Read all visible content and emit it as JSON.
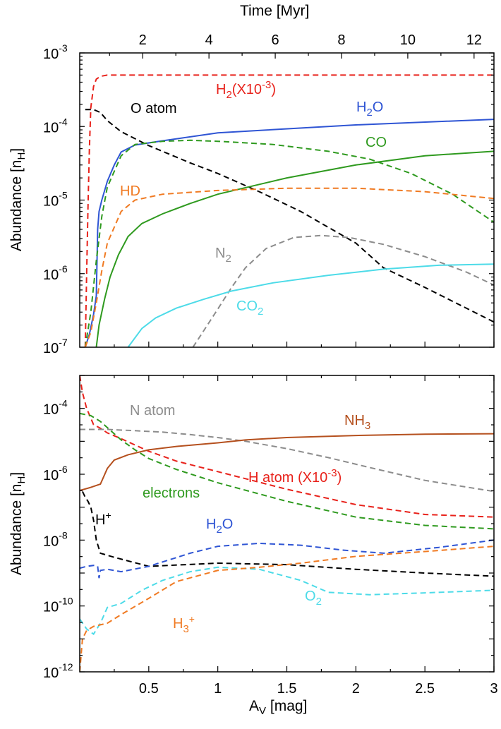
{
  "chart_data": [
    {
      "type": "line",
      "panel": "top",
      "title": "",
      "xlabel": "",
      "ylabel": "Abundance [nH]",
      "xlabel_top": "Time [Myr]",
      "xlim_top": [
        0.1,
        12.6
      ],
      "top_ticks": [
        "2",
        "4",
        "6",
        "8",
        "10",
        "12"
      ],
      "ylim": [
        1e-07,
        0.001
      ],
      "yscale": "log",
      "y_ticks": [
        {
          "base": "10",
          "exp": "-7"
        },
        {
          "base": "10",
          "exp": "-6"
        },
        {
          "base": "10",
          "exp": "-5"
        },
        {
          "base": "10",
          "exp": "-4"
        },
        {
          "base": "10",
          "exp": "-3"
        }
      ],
      "xlim": [
        0,
        3
      ],
      "series": [
        {
          "name": "H2(X10-3)",
          "style": "dashed",
          "color": "#e8221b",
          "x": [
            0.04,
            0.05,
            0.06,
            0.07,
            0.08,
            0.1,
            0.12,
            0.15,
            0.2,
            0.3,
            0.5,
            1,
            2,
            3
          ],
          "y": [
            1e-07,
            1e-06,
            8e-06,
            5e-05,
            0.00018,
            0.00035,
            0.00044,
            0.00048,
            0.0005,
            0.0005,
            0.0005,
            0.0005,
            0.0005,
            0.0005
          ]
        },
        {
          "name": "O atom",
          "style": "dashed",
          "color": "#000000",
          "x": [
            0.04,
            0.1,
            0.15,
            0.2,
            0.3,
            0.5,
            0.8,
            1.0,
            1.3,
            1.6,
            2.0,
            2.2,
            2.5,
            3.0
          ],
          "y": [
            0.00017,
            0.00017,
            0.000155,
            0.00012,
            8.5e-05,
            5.5e-05,
            3.2e-05,
            2.3e-05,
            1.3e-05,
            7e-06,
            2.6e-06,
            1.2e-06,
            6.5e-07,
            2.2e-07
          ]
        },
        {
          "name": "H2O",
          "style": "solid",
          "color": "#2f55d4",
          "x": [
            0.04,
            0.07,
            0.1,
            0.12,
            0.13,
            0.14,
            0.16,
            0.2,
            0.25,
            0.3,
            0.4,
            0.6,
            1,
            2,
            3
          ],
          "y": [
            1e-07,
            1.5e-07,
            2.8e-07,
            5e-07,
            4e-06,
            7e-06,
            1e-05,
            1.8e-05,
            3e-05,
            4.5e-05,
            5.6e-05,
            6.4e-05,
            8.2e-05,
            0.000105,
            0.000125
          ]
        },
        {
          "name": "CO dashed",
          "style": "dashed",
          "color": "#2f9a1f",
          "x": [
            0.04,
            0.08,
            0.12,
            0.16,
            0.2,
            0.3,
            0.4,
            0.6,
            0.8,
            1.0,
            1.4,
            1.8,
            2.1,
            2.4,
            2.7,
            3.0
          ],
          "y": [
            1e-07,
            3e-07,
            1.5e-06,
            6e-06,
            1.5e-05,
            4e-05,
            5.7e-05,
            6.3e-05,
            6.5e-05,
            6.3e-05,
            5.7e-05,
            4.6e-05,
            3.6e-05,
            2.3e-05,
            1.2e-05,
            5e-06
          ]
        },
        {
          "name": "CO",
          "style": "solid",
          "color": "#2f9a1f",
          "x": [
            0.12,
            0.14,
            0.18,
            0.22,
            0.28,
            0.35,
            0.45,
            0.6,
            0.8,
            1,
            1.5,
            2,
            2.5,
            3
          ],
          "y": [
            1e-07,
            2e-07,
            4.5e-07,
            9e-07,
            1.8e-06,
            3.2e-06,
            4.8e-06,
            6.5e-06,
            9e-06,
            1.2e-05,
            2e-05,
            3e-05,
            4e-05,
            4.6e-05
          ]
        },
        {
          "name": "HD",
          "style": "dashed",
          "color": "#f07a22",
          "x": [
            0.04,
            0.08,
            0.12,
            0.16,
            0.2,
            0.3,
            0.4,
            0.6,
            1,
            1.5,
            2,
            2.5,
            3
          ],
          "y": [
            1e-07,
            1.6e-07,
            4e-07,
            1.1e-06,
            2.6e-06,
            7e-06,
            1e-05,
            1.2e-05,
            1.35e-05,
            1.45e-05,
            1.45e-05,
            1.3e-05,
            1.05e-05
          ]
        },
        {
          "name": "N2",
          "style": "dashed",
          "color": "#8c8c8c",
          "x": [
            0.82,
            0.9,
            1.0,
            1.1,
            1.2,
            1.35,
            1.55,
            1.75,
            1.95,
            2.2,
            2.5,
            2.8,
            3.0
          ],
          "y": [
            1e-07,
            1.7e-07,
            3.3e-07,
            6.5e-07,
            1.2e-06,
            2.2e-06,
            3.1e-06,
            3.3e-06,
            3.1e-06,
            2.5e-06,
            1.7e-06,
            1.05e-06,
            7e-07
          ]
        },
        {
          "name": "CO2",
          "style": "solid",
          "color": "#4ddbe8",
          "x": [
            0.35,
            0.45,
            0.55,
            0.7,
            0.9,
            1.1,
            1.4,
            1.8,
            2.2,
            2.6,
            3.0
          ],
          "y": [
            1e-07,
            1.8e-07,
            2.5e-07,
            3.4e-07,
            4.5e-07,
            5.8e-07,
            7.5e-07,
            9.5e-07,
            1.15e-06,
            1.3e-06,
            1.35e-06
          ]
        }
      ],
      "annotations": [
        {
          "text": "O atom",
          "color": "#000000"
        },
        {
          "text": "H2(X10-3)",
          "color": "#e8221b"
        },
        {
          "text": "H2O",
          "color": "#2f55d4"
        },
        {
          "text": "CO",
          "color": "#2f9a1f"
        },
        {
          "text": "HD",
          "color": "#f07a22"
        },
        {
          "text": "N2",
          "color": "#8c8c8c"
        },
        {
          "text": "CO2",
          "color": "#4ddbe8"
        }
      ]
    },
    {
      "type": "line",
      "panel": "bottom",
      "title": "",
      "xlabel": "AV [mag]",
      "ylabel": "Abundance [nH]",
      "xlim": [
        0,
        3
      ],
      "x_ticks": [
        "0.5",
        "1",
        "1.5",
        "2",
        "2.5",
        "3"
      ],
      "ylim": [
        1e-12,
        0.001
      ],
      "yscale": "log",
      "y_ticks": [
        {
          "base": "10",
          "exp": "-12"
        },
        {
          "base": "10",
          "exp": "-10"
        },
        {
          "base": "10",
          "exp": "-8"
        },
        {
          "base": "10",
          "exp": "-6"
        },
        {
          "base": "10",
          "exp": "-4"
        }
      ],
      "series": [
        {
          "name": "H atom (X10-3)",
          "style": "dashed",
          "color": "#e8221b",
          "x": [
            0.0,
            0.02,
            0.05,
            0.1,
            0.15,
            0.2,
            0.3,
            0.5,
            0.7,
            1.0,
            1.5,
            2.0,
            2.5,
            3.0
          ],
          "y": [
            0.001,
            0.0003,
            0.0001,
            3.2e-05,
            2.5e-05,
            1.8e-05,
            1.2e-05,
            5e-06,
            2.5e-06,
            1.2e-06,
            3.5e-07,
            1.2e-07,
            6e-08,
            5e-08
          ]
        },
        {
          "name": "electrons",
          "style": "dashed",
          "color": "#2f9a1f",
          "x": [
            0.0,
            0.08,
            0.15,
            0.22,
            0.3,
            0.4,
            0.5,
            0.7,
            1.0,
            1.5,
            2.0,
            2.5,
            3.0
          ],
          "y": [
            7e-05,
            6e-05,
            4e-05,
            2.2e-05,
            1.1e-05,
            5.5e-06,
            3e-06,
            1.4e-06,
            5.5e-07,
            1.5e-07,
            5e-08,
            2.8e-08,
            2.2e-08
          ]
        },
        {
          "name": "N atom",
          "style": "dashed",
          "color": "#8c8c8c",
          "x": [
            0.0,
            0.2,
            0.4,
            0.6,
            0.8,
            1.0,
            1.2,
            1.5,
            1.8,
            2.1,
            2.5,
            3.0
          ],
          "y": [
            2.3e-05,
            2.3e-05,
            2.1e-05,
            1.9e-05,
            1.6e-05,
            1.3e-05,
            1e-05,
            6e-06,
            3.2e-06,
            1.6e-06,
            6.5e-07,
            3e-07
          ]
        },
        {
          "name": "NH3",
          "style": "solid",
          "color": "#b5501e",
          "x": [
            0.0,
            0.08,
            0.15,
            0.2,
            0.25,
            0.35,
            0.5,
            0.7,
            1.0,
            1.2,
            1.5,
            2.0,
            2.5,
            3.0
          ],
          "y": [
            3.2e-07,
            4e-07,
            5e-07,
            1.5e-06,
            2.7e-06,
            3.9e-06,
            5.5e-06,
            7e-06,
            9e-06,
            1.1e-05,
            1.3e-05,
            1.5e-05,
            1.65e-05,
            1.7e-05
          ]
        },
        {
          "name": "H+",
          "style": "dashed",
          "color": "#000000",
          "x": [
            0.02,
            0.04,
            0.06,
            0.08,
            0.1,
            0.12,
            0.15,
            0.25,
            0.5,
            1.0,
            1.5,
            2.0,
            2.5,
            3.0
          ],
          "y": [
            3e-07,
            2e-07,
            1.5e-07,
            1e-07,
            4e-08,
            1e-08,
            4e-09,
            3e-09,
            1.6e-09,
            2e-09,
            1.8e-09,
            1.3e-09,
            1e-09,
            8e-10
          ]
        },
        {
          "name": "H2O",
          "style": "dashed",
          "color": "#2f55d4",
          "x": [
            0.0,
            0.05,
            0.1,
            0.13,
            0.14,
            0.15,
            0.2,
            0.3,
            0.5,
            0.8,
            1.0,
            1.3,
            1.6,
            1.9,
            2.2,
            2.6,
            3.0
          ],
          "y": [
            1.4e-09,
            1.6e-09,
            1.7e-09,
            1.6e-09,
            7e-10,
            1.2e-09,
            1.3e-09,
            1.1e-09,
            1.6e-09,
            4e-09,
            6.5e-09,
            8e-09,
            7e-09,
            5e-09,
            4e-09,
            6e-09,
            1e-08
          ]
        },
        {
          "name": "O2",
          "style": "dashed",
          "color": "#4ddbe8",
          "x": [
            0.0,
            0.05,
            0.1,
            0.15,
            0.2,
            0.3,
            0.45,
            0.6,
            0.8,
            1.0,
            1.3,
            1.6,
            1.8,
            2.1,
            2.5,
            3.0
          ],
          "y": [
            4e-11,
            2e-11,
            1.4e-11,
            3e-11,
            9e-11,
            1.2e-10,
            3e-10,
            6e-10,
            1.1e-09,
            1.5e-09,
            1.3e-09,
            6e-10,
            2.6e-10,
            2.2e-10,
            2.5e-10,
            3e-10
          ]
        },
        {
          "name": "H3+",
          "style": "dashed",
          "color": "#f07a22",
          "x": [
            0.0,
            0.02,
            0.05,
            0.1,
            0.2,
            0.3,
            0.5,
            0.7,
            1.0,
            1.3,
            1.6,
            2.0,
            2.5,
            3.0
          ],
          "y": [
            1e-12,
            1e-11,
            1.8e-11,
            2.4e-11,
            3e-11,
            5.5e-11,
            1.7e-10,
            5.5e-10,
            1.2e-09,
            1.5e-09,
            2e-09,
            3.2e-09,
            4.5e-09,
            6.5e-09
          ]
        }
      ],
      "annotations": [
        {
          "text": "N atom",
          "color": "#8c8c8c"
        },
        {
          "text": "NH3",
          "color": "#b5501e"
        },
        {
          "text": "H atom (X10-3)",
          "color": "#e8221b"
        },
        {
          "text": "electrons",
          "color": "#2f9a1f"
        },
        {
          "text": "H+",
          "color": "#000000"
        },
        {
          "text": "H2O",
          "color": "#2f55d4"
        },
        {
          "text": "O2",
          "color": "#4ddbe8"
        },
        {
          "text": "H3+",
          "color": "#f07a22"
        }
      ]
    }
  ]
}
